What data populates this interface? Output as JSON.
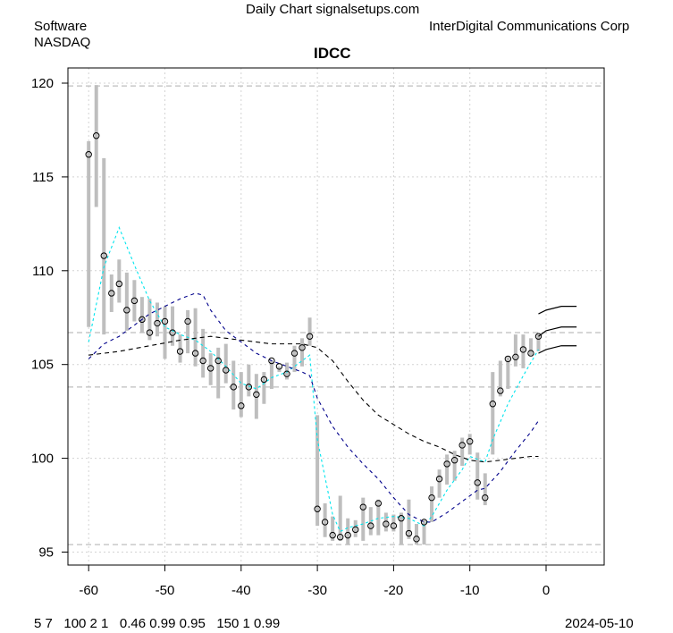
{
  "header": {
    "site_title": "Daily Chart signalsetups.com",
    "sector": "Software",
    "exchange": "NASDAQ",
    "company": "InterDigital Communications Corp",
    "ticker": "IDCC"
  },
  "footer": {
    "params": "5 7   100 2 1   0.46 0.99 0.95   150 1 0.99",
    "date": "2024-05-10"
  },
  "colors": {
    "bar": "#bebebe",
    "ma_fast": "#00e5ee",
    "ma_mid": "#00008b",
    "ma_slow": "#000000",
    "grid": "#d3d3d3",
    "hline": "#bebebe"
  },
  "chart_data": {
    "type": "bar",
    "subtype": "ohlc-range-with-close",
    "title": "IDCC",
    "xlabel": "",
    "ylabel": "",
    "xlim": [
      -62,
      7.5
    ],
    "ylim": [
      94.5,
      121.0
    ],
    "x_ticks": [
      -60,
      -50,
      -40,
      -30,
      -20,
      -10,
      0
    ],
    "y_ticks": [
      95,
      100,
      105,
      110,
      115,
      120
    ],
    "grid": true,
    "horizontal_reference_lines": [
      119.85,
      106.7,
      103.8,
      95.4
    ],
    "x": [
      -60,
      -59,
      -58,
      -57,
      -56,
      -55,
      -54,
      -53,
      -52,
      -51,
      -50,
      -49,
      -48,
      -47,
      -46,
      -45,
      -44,
      -43,
      -42,
      -41,
      -40,
      -39,
      -38,
      -37,
      -36,
      -35,
      -34,
      -33,
      -32,
      -31,
      -30,
      -29,
      -28,
      -27,
      -26,
      -25,
      -24,
      -23,
      -22,
      -21,
      -20,
      -19,
      -18,
      -17,
      -16,
      -15,
      -14,
      -13,
      -12,
      -11,
      -10,
      -9,
      -8,
      -7,
      -6,
      -5,
      -4,
      -3,
      -2,
      -1
    ],
    "close": [
      116.2,
      117.2,
      110.8,
      108.8,
      109.3,
      107.9,
      108.4,
      107.4,
      106.7,
      107.2,
      107.3,
      106.7,
      105.7,
      107.3,
      105.6,
      105.2,
      104.8,
      105.2,
      104.7,
      103.8,
      102.8,
      103.8,
      103.4,
      104.2,
      105.2,
      104.9,
      104.5,
      105.6,
      105.9,
      106.5,
      97.3,
      96.6,
      95.9,
      95.8,
      95.9,
      96.2,
      97.4,
      96.4,
      97.6,
      96.5,
      96.4,
      96.8,
      96.0,
      95.7,
      96.6,
      97.9,
      98.9,
      99.7,
      99.9,
      100.7,
      100.9,
      98.7,
      97.9,
      102.9,
      103.6,
      105.3,
      105.4,
      105.8,
      105.6,
      106.5
    ],
    "high": [
      116.9,
      119.9,
      116.0,
      109.8,
      110.6,
      109.9,
      109.5,
      108.6,
      108.5,
      108.3,
      108.1,
      108.1,
      106.6,
      107.9,
      108.0,
      106.9,
      105.6,
      105.9,
      106.1,
      105.2,
      104.6,
      105.0,
      104.5,
      104.6,
      105.2,
      104.9,
      105.1,
      106.0,
      106.4,
      107.5,
      102.3,
      97.6,
      96.9,
      98.0,
      96.8,
      96.7,
      97.9,
      97.4,
      97.8,
      97.1,
      97.0,
      97.1,
      97.8,
      96.5,
      96.7,
      98.5,
      99.4,
      100.2,
      100.4,
      101.1,
      101.3,
      100.3,
      99.2,
      104.6,
      105.2,
      105.4,
      106.6,
      106.6,
      106.4,
      106.6
    ],
    "low": [
      107.0,
      113.4,
      106.6,
      107.8,
      108.3,
      106.8,
      107.3,
      106.7,
      106.3,
      106.5,
      105.3,
      106.0,
      105.1,
      105.6,
      104.9,
      104.3,
      103.9,
      103.2,
      104.0,
      102.6,
      102.2,
      103.3,
      102.1,
      102.9,
      103.7,
      104.6,
      104.2,
      104.6,
      104.9,
      106.0,
      96.4,
      95.8,
      95.6,
      95.6,
      95.4,
      95.8,
      95.6,
      95.9,
      95.9,
      96.1,
      96.1,
      95.4,
      95.7,
      95.4,
      95.4,
      96.6,
      97.9,
      98.6,
      98.8,
      99.6,
      100.2,
      97.8,
      97.5,
      100.2,
      103.3,
      103.7,
      104.9,
      104.8,
      105.5,
      105.7
    ],
    "series": [
      {
        "name": "MA fast (cyan dashed)",
        "x": [
          -60,
          -58,
          -56,
          -54,
          -52,
          -50,
          -48,
          -46,
          -44,
          -42,
          -40,
          -38,
          -36,
          -34,
          -32,
          -31,
          -30,
          -28,
          -27,
          -26,
          -24,
          -22,
          -20,
          -18,
          -16,
          -15,
          -13,
          -11,
          -10,
          -8,
          -7,
          -5,
          -3,
          -1
        ],
        "values": [
          106.2,
          110.2,
          112.3,
          110.3,
          108.4,
          107.0,
          106.6,
          106.3,
          105.7,
          104.9,
          104.0,
          103.7,
          104.3,
          104.6,
          105.2,
          105.5,
          101.0,
          97.0,
          96.1,
          96.3,
          96.5,
          96.8,
          96.9,
          96.8,
          96.4,
          96.9,
          98.3,
          99.4,
          100.1,
          99.8,
          101.0,
          102.9,
          104.4,
          105.8
        ]
      },
      {
        "name": "MA mid (blue dashed)",
        "x": [
          -60,
          -58,
          -56,
          -54,
          -52,
          -50,
          -48,
          -46,
          -45,
          -44,
          -42,
          -40,
          -38,
          -36,
          -34,
          -32,
          -31,
          -30,
          -28,
          -26,
          -24,
          -22,
          -20,
          -18,
          -16,
          -15,
          -13,
          -11,
          -9,
          -8,
          -6,
          -4,
          -2,
          -1
        ],
        "values": [
          105.3,
          106.1,
          106.5,
          107.1,
          107.7,
          108.1,
          108.5,
          108.8,
          108.7,
          107.9,
          106.8,
          106.2,
          105.6,
          105.2,
          104.9,
          104.6,
          104.4,
          103.2,
          101.7,
          100.6,
          99.7,
          98.9,
          97.9,
          97.0,
          96.6,
          96.6,
          97.1,
          97.7,
          98.3,
          98.4,
          99.3,
          100.4,
          101.4,
          102.0
        ]
      },
      {
        "name": "MA slow (black dashed)",
        "x": [
          -60,
          -56,
          -52,
          -48,
          -44,
          -40,
          -36,
          -32,
          -30,
          -28,
          -26,
          -24,
          -22,
          -20,
          -18,
          -16,
          -14,
          -12,
          -10,
          -8,
          -6,
          -4,
          -2,
          -1
        ],
        "values": [
          105.5,
          105.7,
          106.0,
          106.3,
          106.5,
          106.3,
          106.1,
          106.1,
          105.9,
          105.2,
          104.1,
          103.1,
          102.3,
          101.8,
          101.3,
          100.9,
          100.6,
          100.2,
          99.9,
          99.8,
          99.9,
          100.0,
          100.1,
          100.1
        ]
      },
      {
        "name": "Projection band (black solid)",
        "x": [
          -1,
          0,
          1,
          2,
          4
        ],
        "upper": [
          107.7,
          107.9,
          108.0,
          108.1,
          108.1
        ],
        "middle": [
          106.5,
          106.8,
          106.9,
          107.0,
          107.0
        ],
        "lower": [
          105.6,
          105.8,
          105.9,
          106.0,
          106.0
        ]
      }
    ]
  }
}
